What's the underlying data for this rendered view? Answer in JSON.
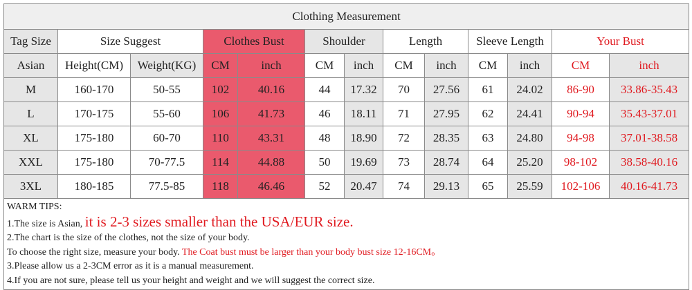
{
  "title": "Clothing Measurement",
  "header_top": [
    "Tag Size",
    "Size Suggest",
    "Clothes Bust",
    "Shoulder",
    "Length",
    "Sleeve Length",
    "Your Bust"
  ],
  "header_sub": [
    "Asian",
    "Height(CM)",
    "Weight(KG)",
    "CM",
    "inch",
    "CM",
    "inch",
    "CM",
    "inch",
    "CM",
    "inch",
    "CM",
    "inch"
  ],
  "rows": [
    [
      "M",
      "160-170",
      "50-55",
      "102",
      "40.16",
      "44",
      "17.32",
      "70",
      "27.56",
      "61",
      "24.02",
      "86-90",
      "33.86-35.43"
    ],
    [
      "L",
      "170-175",
      "55-60",
      "106",
      "41.73",
      "46",
      "18.11",
      "71",
      "27.95",
      "62",
      "24.41",
      "90-94",
      "35.43-37.01"
    ],
    [
      "XL",
      "175-180",
      "60-70",
      "110",
      "43.31",
      "48",
      "18.90",
      "72",
      "28.35",
      "63",
      "24.80",
      "94-98",
      "37.01-38.58"
    ],
    [
      "XXL",
      "175-180",
      "70-77.5",
      "114",
      "44.88",
      "50",
      "19.69",
      "73",
      "28.74",
      "64",
      "25.20",
      "98-102",
      "38.58-40.16"
    ],
    [
      "3XL",
      "180-185",
      "77.5-85",
      "118",
      "46.46",
      "52",
      "20.47",
      "74",
      "29.13",
      "65",
      "25.59",
      "102-106",
      "40.16-41.73"
    ]
  ],
  "tips": {
    "heading": "WARM TIPS:",
    "line1": "1.The size is Asian,",
    "line1_red": "it is 2-3 sizes smaller than the USA/EUR size.",
    "line2": "2.The chart is the size of the clothes, not the size of your body.",
    "line3": "To choose the right size, measure your body.",
    "line3_red": "The Coat bust must be larger than your body bust size 12-16CM。",
    "line4": "3.Please allow us a 2-3CM error as it is a manual measurement.",
    "line5": "4.If you are not sure, please tell us your height and weight and we will suggest the correct size."
  }
}
